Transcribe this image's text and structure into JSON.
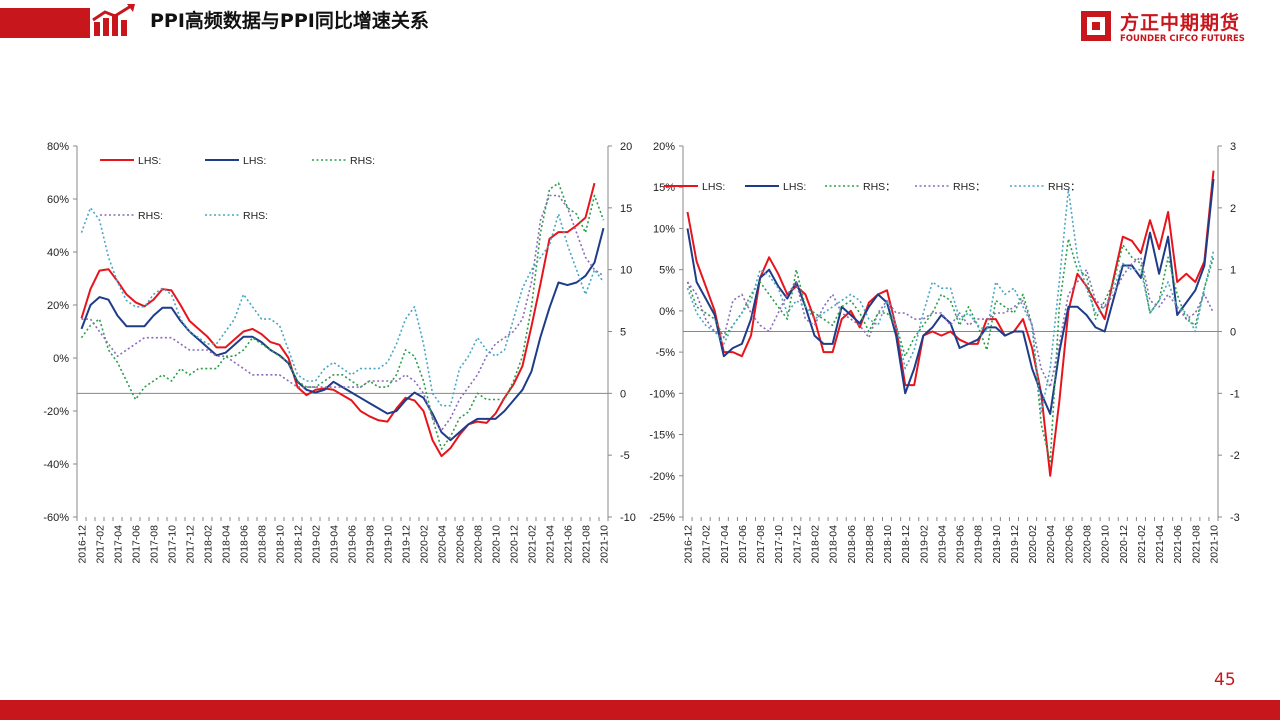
{
  "header": {
    "title": "PPI高频数据与PPI同比增速关系",
    "accent_color": "#c8161d",
    "icon": "rising-chart-icon"
  },
  "brand": {
    "name_cn": "方正中期期货",
    "name_en": "FOUNDER CIFCO FUTURES",
    "icon": "brand-logo-icon"
  },
  "page_number": "45",
  "chart_data": [
    {
      "type": "line",
      "x": [
        "2016-12",
        "2017-01",
        "2017-02",
        "2017-03",
        "2017-04",
        "2017-05",
        "2017-06",
        "2017-07",
        "2017-08",
        "2017-09",
        "2017-10",
        "2017-11",
        "2017-12",
        "2018-01",
        "2018-02",
        "2018-03",
        "2018-04",
        "2018-05",
        "2018-06",
        "2018-07",
        "2018-08",
        "2018-09",
        "2018-10",
        "2018-11",
        "2018-12",
        "2019-01",
        "2019-02",
        "2019-03",
        "2019-04",
        "2019-05",
        "2019-06",
        "2019-07",
        "2019-08",
        "2019-09",
        "2019-10",
        "2019-11",
        "2019-12",
        "2020-01",
        "2020-02",
        "2020-03",
        "2020-04",
        "2020-05",
        "2020-06",
        "2020-07",
        "2020-08",
        "2020-09",
        "2020-10",
        "2020-11",
        "2020-12",
        "2021-01",
        "2021-02",
        "2021-03",
        "2021-04",
        "2021-05",
        "2021-06",
        "2021-07",
        "2021-08",
        "2021-09",
        "2021-10"
      ],
      "x_tick_labels": [
        "2016-12",
        "2017-02",
        "2017-04",
        "2017-06",
        "2017-08",
        "2017-10",
        "2017-12",
        "2018-02",
        "2018-04",
        "2018-06",
        "2018-08",
        "2018-10",
        "2018-12",
        "2019-02",
        "2019-04",
        "2019-06",
        "2019-08",
        "2019-10",
        "2019-12",
        "2020-02",
        "2020-04",
        "2020-06",
        "2020-08",
        "2020-10",
        "2020-12",
        "2021-02",
        "2021-04",
        "2021-06",
        "2021-08",
        "2021-10"
      ],
      "y_left": {
        "min": -60,
        "max": 80,
        "ticks": [
          -60,
          -40,
          -20,
          0,
          20,
          40,
          60,
          80
        ],
        "format": "percent"
      },
      "y_right": {
        "min": -10,
        "max": 20,
        "ticks": [
          -10,
          -5,
          0,
          5,
          10,
          15,
          20
        ]
      },
      "grid": false,
      "legend": "top-left",
      "series": [
        {
          "name": "LHS:",
          "axis": "left",
          "style": "solid",
          "color": "#e8141c",
          "values": [
            15,
            26,
            33,
            33.5,
            29,
            24,
            21,
            19.5,
            22,
            26,
            25.5,
            20,
            14,
            11,
            8,
            4,
            4,
            7,
            10,
            11,
            9,
            6,
            5,
            0,
            -11,
            -14,
            -12,
            -11.5,
            -12,
            -14,
            -16,
            -20,
            -22,
            -23.5,
            -24,
            -19,
            -15,
            -16,
            -20,
            -31,
            -37,
            -34,
            -29,
            -25,
            -24,
            -24.5,
            -21,
            -15,
            -10,
            -3,
            12,
            28,
            45,
            47.5,
            47.5,
            50,
            53,
            66,
            null
          ]
        },
        {
          "name": "LHS:",
          "axis": "left",
          "style": "solid",
          "color": "#1f3c88",
          "values": [
            11,
            20,
            23,
            22,
            16,
            12,
            12,
            12,
            16,
            19,
            19,
            14,
            10,
            7,
            4,
            1,
            2,
            5,
            8,
            8,
            6,
            3,
            1,
            -2,
            -9,
            -12,
            -13,
            -12,
            -9,
            -11,
            -13,
            -15,
            -17,
            -19,
            -21,
            -20,
            -16,
            -13,
            -15,
            -21,
            -28,
            -31,
            -28,
            -25,
            -23,
            -23,
            -23,
            -20,
            -16,
            -12,
            -5,
            8,
            19,
            28.5,
            27.5,
            28.5,
            31,
            36,
            49
          ]
        },
        {
          "name": "RHS:",
          "axis": "right",
          "style": "dotted",
          "color": "#2a9d4a",
          "values": [
            4.5,
            5.5,
            6,
            3.5,
            2.5,
            1,
            -0.5,
            0.5,
            1,
            1.5,
            1,
            2,
            1.5,
            2,
            2,
            2,
            3,
            3,
            3.5,
            4.5,
            4,
            3.5,
            3,
            2.5,
            1,
            0.5,
            0.5,
            1,
            1.5,
            1.5,
            1,
            0.5,
            1,
            0.5,
            0.5,
            1.5,
            3.5,
            3,
            1,
            -2,
            -4.5,
            -3.5,
            -2,
            -1.5,
            0,
            -0.5,
            -0.5,
            -0.5,
            1,
            3,
            7,
            13,
            16.5,
            17,
            15,
            14.5,
            13,
            16,
            14
          ]
        },
        {
          "name": "RHS:",
          "axis": "right",
          "style": "dotted",
          "color": "#8a6bb8",
          "values": [
            6,
            6,
            5,
            4,
            3,
            3.5,
            4,
            4.5,
            4.5,
            4.5,
            4.5,
            4,
            3.5,
            3.5,
            3.5,
            3,
            3,
            2.5,
            2,
            1.5,
            1.5,
            1.5,
            1.5,
            1,
            0.5,
            0.5,
            0.5,
            0.5,
            0.5,
            0.5,
            0.5,
            0.5,
            1,
            1,
            1,
            1,
            1.5,
            1,
            0,
            -2,
            -3,
            -2,
            -0.5,
            0.5,
            1.5,
            3,
            4,
            4.5,
            5,
            6,
            9,
            14,
            16,
            16,
            15,
            13,
            11,
            10,
            9.5
          ]
        },
        {
          "name": "RHS:",
          "axis": "right",
          "style": "dotted",
          "color": "#47a6c4",
          "values": [
            13,
            15,
            14,
            11,
            9,
            7.5,
            7,
            7,
            8,
            8.5,
            8,
            6,
            5,
            4.5,
            4,
            4,
            5,
            6,
            8,
            7,
            6,
            6,
            5.5,
            3.5,
            1.5,
            1,
            1,
            2,
            2.5,
            2,
            1.5,
            2,
            2,
            2,
            2.5,
            4,
            6,
            7,
            4,
            0,
            -1,
            -1,
            2,
            3,
            4.5,
            3.5,
            3,
            3.5,
            6,
            8.5,
            10,
            11,
            12,
            14.5,
            12,
            10,
            8,
            10,
            9
          ]
        }
      ]
    },
    {
      "type": "line",
      "x": [
        "2016-12",
        "2017-01",
        "2017-02",
        "2017-03",
        "2017-04",
        "2017-05",
        "2017-06",
        "2017-07",
        "2017-08",
        "2017-09",
        "2017-10",
        "2017-11",
        "2017-12",
        "2018-01",
        "2018-02",
        "2018-03",
        "2018-04",
        "2018-05",
        "2018-06",
        "2018-07",
        "2018-08",
        "2018-09",
        "2018-10",
        "2018-11",
        "2018-12",
        "2019-01",
        "2019-02",
        "2019-03",
        "2019-04",
        "2019-05",
        "2019-06",
        "2019-07",
        "2019-08",
        "2019-09",
        "2019-10",
        "2019-11",
        "2019-12",
        "2020-01",
        "2020-02",
        "2020-03",
        "2020-04",
        "2020-05",
        "2020-06",
        "2020-07",
        "2020-08",
        "2020-09",
        "2020-10",
        "2020-11",
        "2020-12",
        "2021-01",
        "2021-02",
        "2021-03",
        "2021-04",
        "2021-05",
        "2021-06",
        "2021-07",
        "2021-08",
        "2021-09",
        "2021-10"
      ],
      "x_tick_labels": [
        "2016-12",
        "2017-02",
        "2017-04",
        "2017-06",
        "2017-08",
        "2017-10",
        "2017-12",
        "2018-02",
        "2018-04",
        "2018-06",
        "2018-08",
        "2018-10",
        "2018-12",
        "2019-02",
        "2019-04",
        "2019-06",
        "2019-08",
        "2019-10",
        "2019-12",
        "2020-02",
        "2020-04",
        "2020-06",
        "2020-08",
        "2020-10",
        "2020-12",
        "2021-02",
        "2021-04",
        "2021-06",
        "2021-08",
        "2021-10"
      ],
      "y_left": {
        "min": -25,
        "max": 20,
        "ticks": [
          -25,
          -20,
          -15,
          -10,
          -5,
          0,
          5,
          10,
          15,
          20
        ],
        "format": "percent"
      },
      "y_right": {
        "min": -3,
        "max": 3,
        "ticks": [
          -3,
          -2,
          -1,
          0,
          1,
          2,
          3
        ]
      },
      "grid": false,
      "legend": "top",
      "series": [
        {
          "name": "LHS:",
          "axis": "left",
          "style": "solid",
          "color": "#e8141c",
          "values": [
            12,
            6,
            3,
            0,
            -5,
            -5,
            -5.5,
            -3,
            4,
            6.5,
            4.5,
            2,
            3,
            2,
            -1,
            -5,
            -5,
            -1,
            0,
            -2,
            1,
            2,
            2.5,
            -2,
            -9,
            -9,
            -3,
            -2.5,
            -3,
            -2.5,
            -3.5,
            -4,
            -4,
            -1,
            -1,
            -3,
            -2.5,
            -1,
            -4.5,
            -10,
            -20,
            -11,
            0,
            4.5,
            3,
            1,
            -1,
            4,
            9,
            8.5,
            7,
            11,
            7.5,
            12,
            3.5,
            4.5,
            3.5,
            6,
            17
          ]
        },
        {
          "name": "LHS:",
          "axis": "left",
          "style": "solid",
          "color": "#1f3c88",
          "values": [
            10,
            3.5,
            1.5,
            -0.5,
            -5.5,
            -4.5,
            -4,
            -1,
            4,
            5,
            3,
            1.5,
            3.5,
            0.5,
            -3,
            -4,
            -4,
            0.5,
            -0.5,
            -1.5,
            0.5,
            2,
            1,
            -3,
            -10,
            -7,
            -3,
            -2,
            -0.5,
            -1.5,
            -4.5,
            -4,
            -3.5,
            -2,
            -2,
            -3,
            -2.5,
            -2.5,
            -7,
            -10,
            -12.5,
            -5,
            0.5,
            0.5,
            -0.5,
            -2,
            -2.5,
            1.5,
            5.5,
            5.5,
            4,
            9.5,
            4.5,
            9,
            -0.5,
            1,
            2.5,
            5.5,
            16
          ]
        },
        {
          "name": "RHS：",
          "axis": "right",
          "style": "dotted",
          "color": "#2a9d4a",
          "values": [
            0.8,
            0.4,
            0.3,
            0.2,
            -0.1,
            0.1,
            0.3,
            0.6,
            0.8,
            0.6,
            0.4,
            0.2,
            1,
            0.4,
            0.3,
            0.2,
            0.1,
            0.4,
            0.5,
            0.3,
            0,
            0.3,
            0.3,
            0.1,
            -0.4,
            -0.1,
            0.1,
            0.3,
            0.6,
            0.5,
            0.1,
            0.4,
            0.1,
            -0.3,
            0.5,
            0.4,
            0.3,
            0.6,
            0.1,
            -1.5,
            -2.1,
            0.4,
            1.5,
            1,
            0.9,
            0.2,
            0.5,
            0.8,
            1.4,
            1.2,
            1.1,
            0.3,
            0.5,
            1.2,
            0.6,
            0.2,
            0.1,
            0.7,
            1.2
          ]
        },
        {
          "name": "RHS：",
          "axis": "right",
          "style": "dotted",
          "color": "#8a6bb8",
          "values": [
            0.8,
            0.6,
            0.2,
            0,
            -0.1,
            0.5,
            0.6,
            0.3,
            0.1,
            0,
            0.3,
            0.6,
            0.8,
            0.2,
            0.1,
            0.4,
            0.6,
            0.3,
            0.2,
            0.1,
            -0.1,
            0.3,
            0.5,
            0.3,
            0.3,
            0.2,
            0.2,
            0.3,
            0.3,
            0.1,
            0.3,
            0.1,
            0.2,
            0.2,
            0.3,
            0.3,
            0.4,
            0.5,
            0.1,
            -0.6,
            -0.9,
            -0.2,
            0.6,
            0.8,
            1,
            0.5,
            0.4,
            0.6,
            0.9,
            1.1,
            1.2,
            0.5,
            0.4,
            0.6,
            0.4,
            0.2,
            0.3,
            0.6,
            0.3
          ]
        },
        {
          "name": "RHS：",
          "axis": "right",
          "style": "dotted",
          "color": "#47a6c4",
          "values": [
            0.7,
            0.3,
            0.1,
            0,
            -0.2,
            0.1,
            0.3,
            0.5,
            1,
            0.9,
            0.7,
            0.3,
            0.5,
            0.4,
            0.2,
            0.3,
            0.4,
            0.5,
            0.6,
            0.5,
            0.2,
            0.1,
            0.5,
            0.1,
            -0.6,
            -0.3,
            0.3,
            0.8,
            0.7,
            0.7,
            0.2,
            0.3,
            0.1,
            0,
            0.8,
            0.6,
            0.7,
            0.4,
            0.1,
            -1.3,
            -0.6,
            0.8,
            2.3,
            1.2,
            0.7,
            0.3,
            0.4,
            0.7,
            1.1,
            1,
            1,
            0.3,
            0.5,
            0.8,
            0.4,
            0.3,
            0,
            0.7,
            1.3
          ]
        }
      ]
    }
  ]
}
